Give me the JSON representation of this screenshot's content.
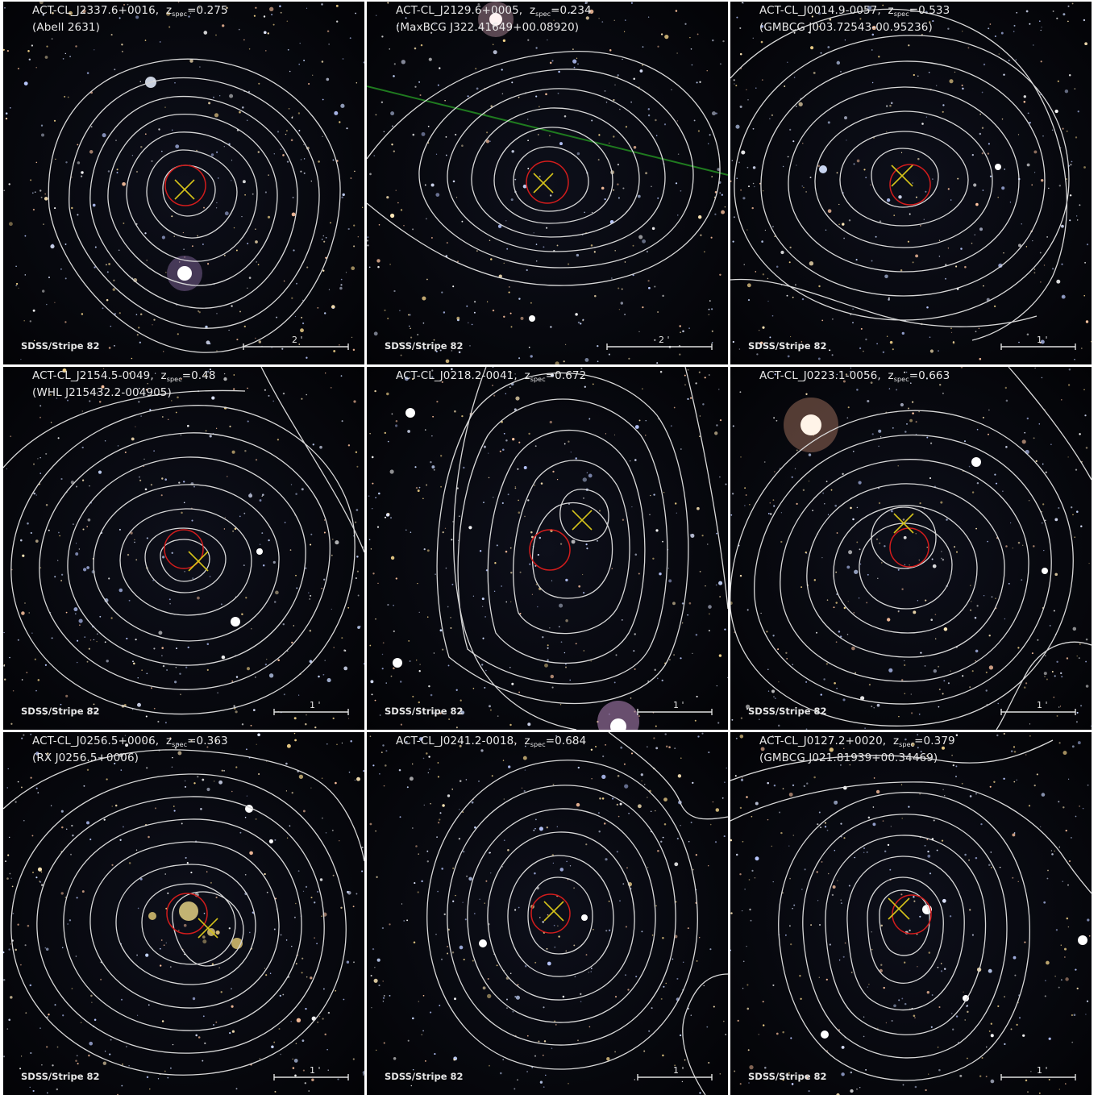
{
  "panels": [
    {
      "name": "ACT-CL_J2337.6+0016",
      "z_label": "z",
      "z_sub": "spec",
      "z_value": "=0.275",
      "alt_name": "(Abell 2631)",
      "credit": "SDSS/Stripe 82",
      "scale_label": "2 '"
    },
    {
      "name": "ACT-CL_J2129.6+0005",
      "z_label": "z",
      "z_sub": "spec",
      "z_value": "=0.234",
      "alt_name": "(MaxBCG J322.41649+00.08920)",
      "credit": "SDSS/Stripe 82",
      "scale_label": "2 '"
    },
    {
      "name": "ACT-CL_J0014.9-0057",
      "z_label": "z",
      "z_sub": "spec",
      "z_value": "=0.533",
      "alt_name": "(GMBCG J003.72543-00.95236)",
      "credit": "SDSS/Stripe 82",
      "scale_label": "1 '"
    },
    {
      "name": "ACT-CL_J2154.5-0049",
      "z_label": "z",
      "z_sub": "spec",
      "z_value": "=0.48",
      "alt_name": "(WHL J215432.2-004905)",
      "credit": "SDSS/Stripe 82",
      "scale_label": "1 '"
    },
    {
      "name": "ACT-CL_J0218.2-0041",
      "z_label": "z",
      "z_sub": "spec",
      "z_value": "=0.672",
      "alt_name": "",
      "credit": "SDSS/Stripe 82",
      "scale_label": "1 '"
    },
    {
      "name": "ACT-CL_J0223.1-0056",
      "z_label": "z",
      "z_sub": "spec",
      "z_value": "=0.663",
      "alt_name": "",
      "credit": "SDSS/Stripe 82",
      "scale_label": "1 '"
    },
    {
      "name": "ACT-CL_J0256.5+0006",
      "z_label": "z",
      "z_sub": "spec",
      "z_value": "=0.363",
      "alt_name": "(RX J0256.5+0006)",
      "credit": "SDSS/Stripe 82",
      "scale_label": "1 '"
    },
    {
      "name": "ACT-CL_J0241.2-0018",
      "z_label": "z",
      "z_sub": "spec",
      "z_value": "=0.684",
      "alt_name": "",
      "credit": "SDSS/Stripe 82",
      "scale_label": "1 '"
    },
    {
      "name": "ACT-CL_J0127.2+0020",
      "z_label": "z",
      "z_sub": "spec",
      "z_value": "=0.379",
      "alt_name": "(GMBCG J021.81939+00.34469)",
      "credit": "SDSS/Stripe 82",
      "scale_label": "1 '"
    }
  ],
  "colors": {
    "contour": "#d8d8d8",
    "circle": "#d21c1c",
    "cross": "#d4c21a",
    "text": "#e8e8e8"
  }
}
